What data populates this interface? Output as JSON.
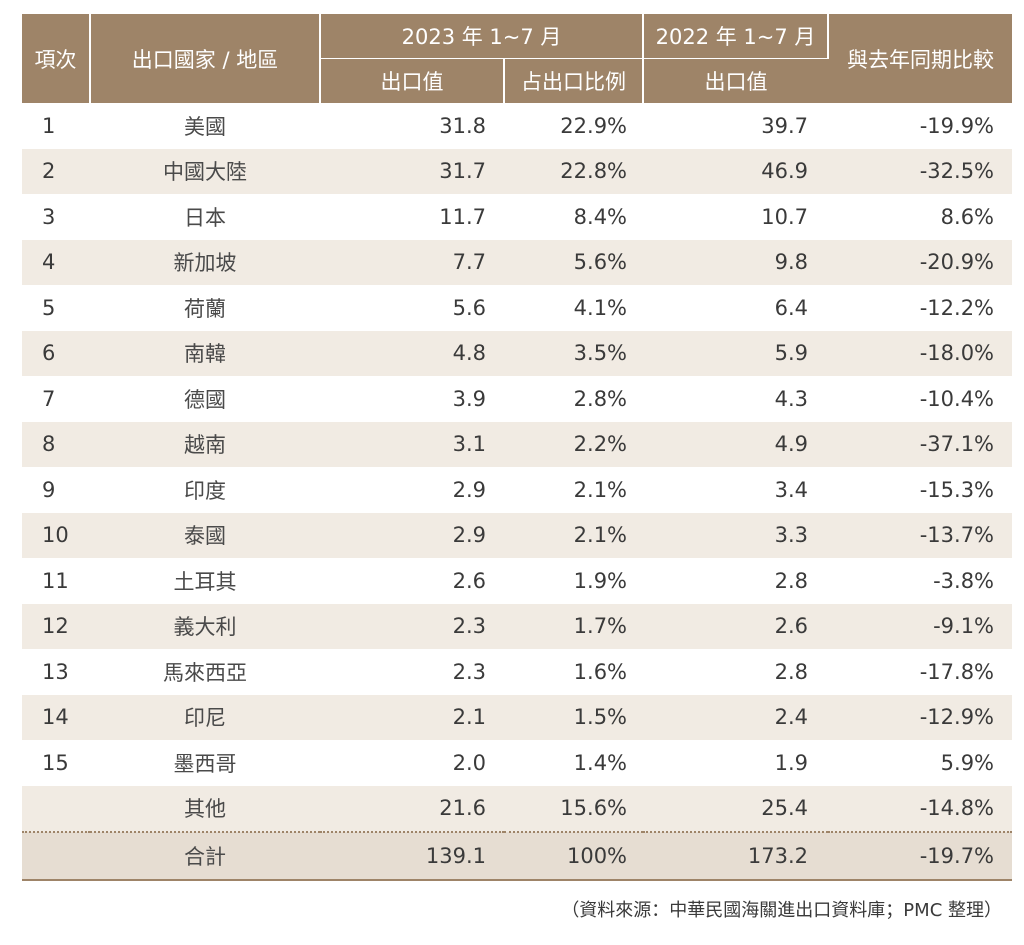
{
  "header": {
    "rank": "項次",
    "country": "出口國家 / 地區",
    "period_2023": "2023 年 1~7 月",
    "period_2022": "2022 年 1~7 月",
    "yoy": "與去年同期比較",
    "export_value_2023": "出口值",
    "share": "占出口比例",
    "export_value_2022": "出口值"
  },
  "rows": [
    {
      "rank": "1",
      "country": "美國",
      "v2023": "31.8",
      "share": "22.9%",
      "v2022": "39.7",
      "yoy": "-19.9%"
    },
    {
      "rank": "2",
      "country": "中國大陸",
      "v2023": "31.7",
      "share": "22.8%",
      "v2022": "46.9",
      "yoy": "-32.5%"
    },
    {
      "rank": "3",
      "country": "日本",
      "v2023": "11.7",
      "share": "8.4%",
      "v2022": "10.7",
      "yoy": "8.6%"
    },
    {
      "rank": "4",
      "country": "新加坡",
      "v2023": "7.7",
      "share": "5.6%",
      "v2022": "9.8",
      "yoy": "-20.9%"
    },
    {
      "rank": "5",
      "country": "荷蘭",
      "v2023": "5.6",
      "share": "4.1%",
      "v2022": "6.4",
      "yoy": "-12.2%"
    },
    {
      "rank": "6",
      "country": "南韓",
      "v2023": "4.8",
      "share": "3.5%",
      "v2022": "5.9",
      "yoy": "-18.0%"
    },
    {
      "rank": "7",
      "country": "德國",
      "v2023": "3.9",
      "share": "2.8%",
      "v2022": "4.3",
      "yoy": "-10.4%"
    },
    {
      "rank": "8",
      "country": "越南",
      "v2023": "3.1",
      "share": "2.2%",
      "v2022": "4.9",
      "yoy": "-37.1%"
    },
    {
      "rank": "9",
      "country": "印度",
      "v2023": "2.9",
      "share": "2.1%",
      "v2022": "3.4",
      "yoy": "-15.3%"
    },
    {
      "rank": "10",
      "country": "泰國",
      "v2023": "2.9",
      "share": "2.1%",
      "v2022": "3.3",
      "yoy": "-13.7%"
    },
    {
      "rank": "11",
      "country": "土耳其",
      "v2023": "2.6",
      "share": "1.9%",
      "v2022": "2.8",
      "yoy": "-3.8%"
    },
    {
      "rank": "12",
      "country": "義大利",
      "v2023": "2.3",
      "share": "1.7%",
      "v2022": "2.6",
      "yoy": "-9.1%"
    },
    {
      "rank": "13",
      "country": "馬來西亞",
      "v2023": "2.3",
      "share": "1.6%",
      "v2022": "2.8",
      "yoy": "-17.8%"
    },
    {
      "rank": "14",
      "country": "印尼",
      "v2023": "2.1",
      "share": "1.5%",
      "v2022": "2.4",
      "yoy": "-12.9%"
    },
    {
      "rank": "15",
      "country": "墨西哥",
      "v2023": "2.0",
      "share": "1.4%",
      "v2022": "1.9",
      "yoy": "5.9%"
    },
    {
      "rank": "",
      "country": "其他",
      "v2023": "21.6",
      "share": "15.6%",
      "v2022": "25.4",
      "yoy": "-14.8%"
    }
  ],
  "total": {
    "label": "合計",
    "v2023": "139.1",
    "share": "100%",
    "v2022": "173.2",
    "yoy": "-19.7%"
  },
  "source": "（資料來源：中華民國海關進出口資料庫；PMC 整理）",
  "colors": {
    "header_bg": "#9e8468",
    "stripe_bg": "#f1ebe3",
    "total_bg": "#e6ddd2",
    "text": "#3a3a3a"
  }
}
